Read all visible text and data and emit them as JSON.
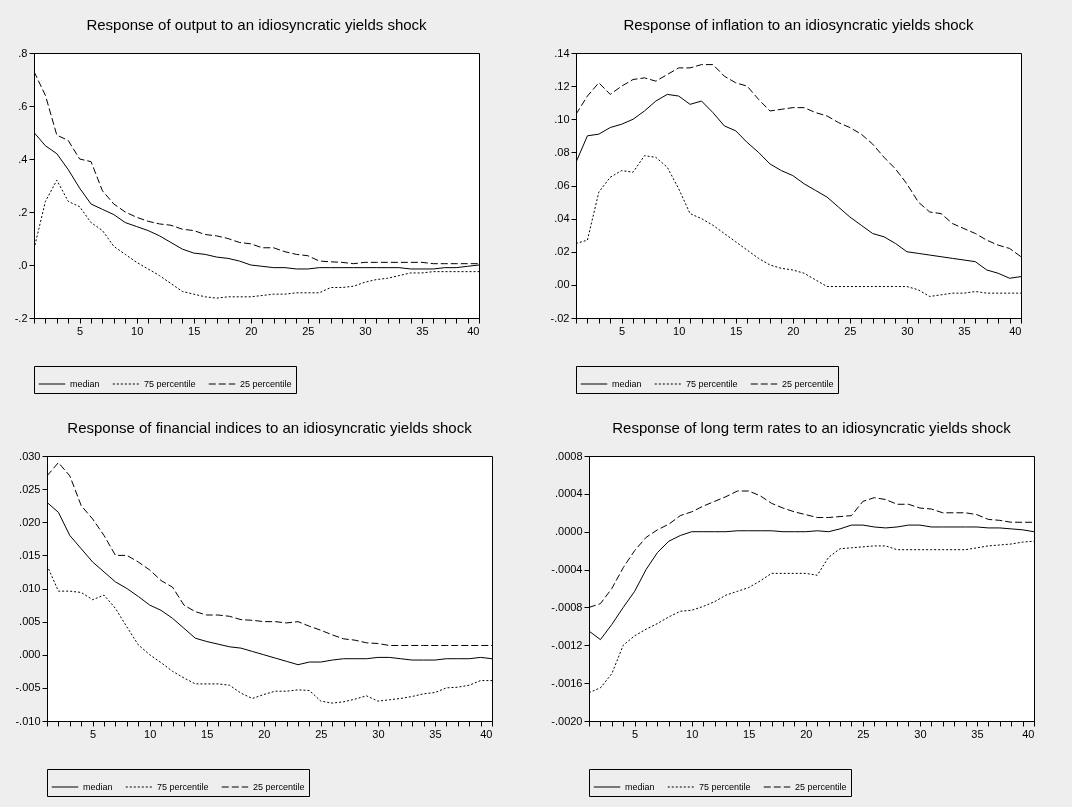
{
  "chart_data": [
    {
      "type": "line",
      "title": "Response of output to an idiosyncratic yields shock",
      "legend": "bottom",
      "x": [
        1,
        2,
        3,
        4,
        5,
        6,
        7,
        8,
        9,
        10,
        11,
        12,
        13,
        14,
        15,
        16,
        17,
        18,
        19,
        20,
        21,
        22,
        23,
        24,
        25,
        26,
        27,
        28,
        29,
        30,
        31,
        32,
        33,
        34,
        35,
        36,
        37,
        38,
        39,
        40
      ],
      "xlim": [
        1,
        40
      ],
      "xticks": [
        {
          "value": 1,
          "label": null
        },
        {
          "value": 2,
          "label": null
        },
        {
          "value": 3,
          "label": null
        },
        {
          "value": 4,
          "label": null
        },
        5,
        {
          "value": 6,
          "label": null
        },
        {
          "value": 7,
          "label": null
        },
        {
          "value": 8,
          "label": null
        },
        {
          "value": 9,
          "label": null
        },
        10,
        {
          "value": 11,
          "label": null
        },
        {
          "value": 12,
          "label": null
        },
        {
          "value": 13,
          "label": null
        },
        {
          "value": 14,
          "label": null
        },
        15,
        {
          "value": 16,
          "label": null
        },
        {
          "value": 17,
          "label": null
        },
        {
          "value": 18,
          "label": null
        },
        {
          "value": 19,
          "label": null
        },
        20,
        {
          "value": 21,
          "label": null
        },
        {
          "value": 22,
          "label": null
        },
        {
          "value": 23,
          "label": null
        },
        {
          "value": 24,
          "label": null
        },
        25,
        {
          "value": 26,
          "label": null
        },
        {
          "value": 27,
          "label": null
        },
        {
          "value": 28,
          "label": null
        },
        {
          "value": 29,
          "label": null
        },
        30,
        {
          "value": 31,
          "label": null
        },
        {
          "value": 32,
          "label": null
        },
        {
          "value": 33,
          "label": null
        },
        {
          "value": 34,
          "label": null
        },
        35,
        {
          "value": 36,
          "label": null
        },
        {
          "value": 37,
          "label": null
        },
        {
          "value": 38,
          "label": null
        },
        {
          "value": 39,
          "label": null
        },
        40
      ],
      "ylim": [
        -0.2,
        0.8
      ],
      "yticks": [
        {
          "value": -0.2,
          "label": "-.2"
        },
        {
          "value": 0,
          "label": ".0"
        },
        {
          "value": 0.2,
          "label": ".2"
        },
        {
          "value": 0.4,
          "label": ".4"
        },
        {
          "value": 0.6,
          "label": ".6"
        },
        {
          "value": 0.8,
          "label": ".8"
        }
      ],
      "series": [
        {
          "name": "median",
          "color": "#000000",
          "line_style": "solid",
          "values": [
            0.5,
            0.45,
            0.42,
            0.36,
            0.29,
            0.23,
            0.21,
            0.19,
            0.16,
            0.145,
            0.13,
            0.11,
            0.085,
            0.06,
            0.045,
            0.04,
            0.03,
            0.025,
            0.015,
            0,
            -0.005,
            -0.01,
            -0.01,
            -0.015,
            -0.015,
            -0.01,
            -0.01,
            -0.01,
            -0.01,
            -0.01,
            -0.01,
            -0.01,
            -0.01,
            -0.015,
            -0.015,
            -0.015,
            -0.01,
            -0.01,
            -0.005,
            0
          ]
        },
        {
          "name": "75 percentile",
          "color": "#000000",
          "line_style": "dotted",
          "values": [
            0.06,
            0.24,
            0.32,
            0.24,
            0.22,
            0.16,
            0.13,
            0.07,
            0.04,
            0.01,
            -0.015,
            -0.04,
            -0.07,
            -0.1,
            -0.11,
            -0.12,
            -0.125,
            -0.12,
            -0.12,
            -0.12,
            -0.115,
            -0.11,
            -0.11,
            -0.105,
            -0.105,
            -0.105,
            -0.085,
            -0.085,
            -0.08,
            -0.065,
            -0.055,
            -0.05,
            -0.04,
            -0.03,
            -0.03,
            -0.025,
            -0.025,
            -0.025,
            -0.025,
            -0.025
          ]
        },
        {
          "name": "25 percentile",
          "color": "#000000",
          "line_style": "dashed",
          "values": [
            0.73,
            0.64,
            0.49,
            0.47,
            0.4,
            0.39,
            0.28,
            0.23,
            0.2,
            0.18,
            0.165,
            0.155,
            0.15,
            0.135,
            0.13,
            0.115,
            0.11,
            0.1,
            0.085,
            0.08,
            0.065,
            0.065,
            0.05,
            0.04,
            0.035,
            0.015,
            0.012,
            0.01,
            0.005,
            0.01,
            0.01,
            0.01,
            0.01,
            0.01,
            0.01,
            0.005,
            0.005,
            0.005,
            0.005,
            0.005
          ]
        }
      ]
    },
    {
      "type": "line",
      "title": "Response of inflation to an idiosyncratic yields shock",
      "legend": "bottom",
      "x": [
        1,
        2,
        3,
        4,
        5,
        6,
        7,
        8,
        9,
        10,
        11,
        12,
        13,
        14,
        15,
        16,
        17,
        18,
        19,
        20,
        21,
        22,
        23,
        24,
        25,
        26,
        27,
        28,
        29,
        30,
        31,
        32,
        33,
        34,
        35,
        36,
        37,
        38,
        39,
        40
      ],
      "xlim": [
        1,
        40
      ],
      "xticks": [
        {
          "value": 1,
          "label": null
        },
        {
          "value": 2,
          "label": null
        },
        {
          "value": 3,
          "label": null
        },
        {
          "value": 4,
          "label": null
        },
        5,
        {
          "value": 6,
          "label": null
        },
        {
          "value": 7,
          "label": null
        },
        {
          "value": 8,
          "label": null
        },
        {
          "value": 9,
          "label": null
        },
        10,
        {
          "value": 11,
          "label": null
        },
        {
          "value": 12,
          "label": null
        },
        {
          "value": 13,
          "label": null
        },
        {
          "value": 14,
          "label": null
        },
        15,
        {
          "value": 16,
          "label": null
        },
        {
          "value": 17,
          "label": null
        },
        {
          "value": 18,
          "label": null
        },
        {
          "value": 19,
          "label": null
        },
        20,
        {
          "value": 21,
          "label": null
        },
        {
          "value": 22,
          "label": null
        },
        {
          "value": 23,
          "label": null
        },
        {
          "value": 24,
          "label": null
        },
        25,
        {
          "value": 26,
          "label": null
        },
        {
          "value": 27,
          "label": null
        },
        {
          "value": 28,
          "label": null
        },
        {
          "value": 29,
          "label": null
        },
        30,
        {
          "value": 31,
          "label": null
        },
        {
          "value": 32,
          "label": null
        },
        {
          "value": 33,
          "label": null
        },
        {
          "value": 34,
          "label": null
        },
        35,
        {
          "value": 36,
          "label": null
        },
        {
          "value": 37,
          "label": null
        },
        {
          "value": 38,
          "label": null
        },
        {
          "value": 39,
          "label": null
        },
        40
      ],
      "ylim": [
        -0.02,
        0.14
      ],
      "yticks": [
        {
          "value": -0.02,
          "label": "-.02"
        },
        {
          "value": 0,
          "label": ".00"
        },
        {
          "value": 0.02,
          "label": ".02"
        },
        {
          "value": 0.04,
          "label": ".04"
        },
        {
          "value": 0.06,
          "label": ".06"
        },
        {
          "value": 0.08,
          "label": ".08"
        },
        {
          "value": 0.1,
          "label": ".10"
        },
        {
          "value": 0.12,
          "label": ".12"
        },
        {
          "value": 0.14,
          "label": ".14"
        }
      ],
      "series": [
        {
          "name": "median",
          "color": "#000000",
          "line_style": "solid",
          "values": [
            0.074,
            0.09,
            0.091,
            0.095,
            0.097,
            0.1,
            0.105,
            0.111,
            0.115,
            0.114,
            0.109,
            0.111,
            0.104,
            0.096,
            0.093,
            0.086,
            0.08,
            0.073,
            0.069,
            0.066,
            0.061,
            0.057,
            0.053,
            0.047,
            0.041,
            0.036,
            0.031,
            0.029,
            0.025,
            0.02,
            0.019,
            0.018,
            0.017,
            0.016,
            0.015,
            0.014,
            0.009,
            0.007,
            0.004,
            0.005
          ]
        },
        {
          "name": "75 percentile",
          "color": "#000000",
          "line_style": "dotted",
          "values": [
            0.025,
            0.027,
            0.056,
            0.065,
            0.069,
            0.068,
            0.078,
            0.077,
            0.071,
            0.058,
            0.043,
            0.04,
            0.036,
            0.031,
            0.026,
            0.021,
            0.016,
            0.012,
            0.01,
            0.009,
            0.007,
            0.003,
            -0.001,
            -0.001,
            -0.001,
            -0.001,
            -0.001,
            -0.001,
            -0.001,
            -0.001,
            -0.003,
            -0.007,
            -0.006,
            -0.005,
            -0.005,
            -0.004,
            -0.005,
            -0.005,
            -0.005,
            -0.005
          ]
        },
        {
          "name": "25 percentile",
          "color": "#000000",
          "line_style": "dashed",
          "values": [
            0.103,
            0.114,
            0.122,
            0.115,
            0.12,
            0.124,
            0.125,
            0.123,
            0.127,
            0.131,
            0.131,
            0.133,
            0.133,
            0.126,
            0.122,
            0.12,
            0.112,
            0.105,
            0.106,
            0.107,
            0.107,
            0.104,
            0.102,
            0.098,
            0.095,
            0.091,
            0.085,
            0.077,
            0.07,
            0.061,
            0.05,
            0.044,
            0.043,
            0.037,
            0.034,
            0.031,
            0.027,
            0.024,
            0.022,
            0.017
          ]
        }
      ]
    },
    {
      "type": "line",
      "title": "Response of financial indices to an idiosyncratic yields shock",
      "legend": "bottom",
      "x": [
        1,
        2,
        3,
        4,
        5,
        6,
        7,
        8,
        9,
        10,
        11,
        12,
        13,
        14,
        15,
        16,
        17,
        18,
        19,
        20,
        21,
        22,
        23,
        24,
        25,
        26,
        27,
        28,
        29,
        30,
        31,
        32,
        33,
        34,
        35,
        36,
        37,
        38,
        39,
        40
      ],
      "xlim": [
        1,
        40
      ],
      "xticks": [
        {
          "value": 1,
          "label": null
        },
        {
          "value": 2,
          "label": null
        },
        {
          "value": 3,
          "label": null
        },
        {
          "value": 4,
          "label": null
        },
        5,
        {
          "value": 6,
          "label": null
        },
        {
          "value": 7,
          "label": null
        },
        {
          "value": 8,
          "label": null
        },
        {
          "value": 9,
          "label": null
        },
        10,
        {
          "value": 11,
          "label": null
        },
        {
          "value": 12,
          "label": null
        },
        {
          "value": 13,
          "label": null
        },
        {
          "value": 14,
          "label": null
        },
        15,
        {
          "value": 16,
          "label": null
        },
        {
          "value": 17,
          "label": null
        },
        {
          "value": 18,
          "label": null
        },
        {
          "value": 19,
          "label": null
        },
        20,
        {
          "value": 21,
          "label": null
        },
        {
          "value": 22,
          "label": null
        },
        {
          "value": 23,
          "label": null
        },
        {
          "value": 24,
          "label": null
        },
        25,
        {
          "value": 26,
          "label": null
        },
        {
          "value": 27,
          "label": null
        },
        {
          "value": 28,
          "label": null
        },
        {
          "value": 29,
          "label": null
        },
        30,
        {
          "value": 31,
          "label": null
        },
        {
          "value": 32,
          "label": null
        },
        {
          "value": 33,
          "label": null
        },
        {
          "value": 34,
          "label": null
        },
        35,
        {
          "value": 36,
          "label": null
        },
        {
          "value": 37,
          "label": null
        },
        {
          "value": 38,
          "label": null
        },
        {
          "value": 39,
          "label": null
        },
        40
      ],
      "ylim": [
        -0.01,
        0.03
      ],
      "yticks": [
        {
          "value": -0.01,
          "label": "-.010"
        },
        {
          "value": -0.005,
          "label": "-.005"
        },
        {
          "value": 0,
          "label": ".000"
        },
        {
          "value": 0.005,
          "label": ".005"
        },
        {
          "value": 0.01,
          "label": ".010"
        },
        {
          "value": 0.015,
          "label": ".015"
        },
        {
          "value": 0.02,
          "label": ".020"
        },
        {
          "value": 0.025,
          "label": ".025"
        },
        {
          "value": 0.03,
          "label": ".030"
        }
      ],
      "series": [
        {
          "name": "median",
          "color": "#000000",
          "line_style": "solid",
          "values": [
            0.023,
            0.0215,
            0.018,
            0.016,
            0.014,
            0.0125,
            0.011,
            0.01,
            0.0088,
            0.0075,
            0.0067,
            0.0055,
            0.004,
            0.0025,
            0.002,
            0.0016,
            0.0012,
            0.001,
            0.0005,
            0,
            -0.0005,
            -0.001,
            -0.0015,
            -0.0011,
            -0.0011,
            -0.0008,
            -0.0006,
            -0.0006,
            -0.0006,
            -0.0004,
            -0.0004,
            -0.0006,
            -0.0008,
            -0.0008,
            -0.0008,
            -0.0006,
            -0.0006,
            -0.0006,
            -0.0004,
            -0.0006
          ]
        },
        {
          "name": "75 percentile",
          "color": "#000000",
          "line_style": "dotted",
          "values": [
            0.0135,
            0.0096,
            0.0096,
            0.0094,
            0.0083,
            0.009,
            0.007,
            0.0042,
            0.0015,
            0,
            -0.0012,
            -0.0025,
            -0.0035,
            -0.0044,
            -0.0044,
            -0.0044,
            -0.0046,
            -0.0058,
            -0.0066,
            -0.006,
            -0.0055,
            -0.0055,
            -0.0053,
            -0.0054,
            -0.007,
            -0.0073,
            -0.0071,
            -0.0067,
            -0.0062,
            -0.007,
            -0.0068,
            -0.0066,
            -0.0063,
            -0.0059,
            -0.0057,
            -0.005,
            -0.0049,
            -0.0046,
            -0.0039,
            -0.0039
          ]
        },
        {
          "name": "25 percentile",
          "color": "#000000",
          "line_style": "dashed",
          "values": [
            0.027,
            0.029,
            0.027,
            0.0225,
            0.0205,
            0.018,
            0.015,
            0.015,
            0.014,
            0.0128,
            0.0112,
            0.0102,
            0.0075,
            0.0065,
            0.006,
            0.006,
            0.0058,
            0.0053,
            0.0052,
            0.005,
            0.005,
            0.0048,
            0.005,
            0.0043,
            0.0037,
            0.003,
            0.0024,
            0.0022,
            0.0018,
            0.0017,
            0.0014,
            0.0014,
            0.0014,
            0.0014,
            0.0014,
            0.0014,
            0.0014,
            0.0014,
            0.0014,
            0.0014
          ]
        }
      ]
    },
    {
      "type": "line",
      "title": "Response of long term rates to an idiosyncratic yields shock",
      "legend": "bottom",
      "x": [
        1,
        2,
        3,
        4,
        5,
        6,
        7,
        8,
        9,
        10,
        11,
        12,
        13,
        14,
        15,
        16,
        17,
        18,
        19,
        20,
        21,
        22,
        23,
        24,
        25,
        26,
        27,
        28,
        29,
        30,
        31,
        32,
        33,
        34,
        35,
        36,
        37,
        38,
        39,
        40
      ],
      "xlim": [
        1,
        40
      ],
      "xticks": [
        {
          "value": 1,
          "label": null
        },
        {
          "value": 2,
          "label": null
        },
        {
          "value": 3,
          "label": null
        },
        {
          "value": 4,
          "label": null
        },
        5,
        {
          "value": 6,
          "label": null
        },
        {
          "value": 7,
          "label": null
        },
        {
          "value": 8,
          "label": null
        },
        {
          "value": 9,
          "label": null
        },
        10,
        {
          "value": 11,
          "label": null
        },
        {
          "value": 12,
          "label": null
        },
        {
          "value": 13,
          "label": null
        },
        {
          "value": 14,
          "label": null
        },
        15,
        {
          "value": 16,
          "label": null
        },
        {
          "value": 17,
          "label": null
        },
        {
          "value": 18,
          "label": null
        },
        {
          "value": 19,
          "label": null
        },
        20,
        {
          "value": 21,
          "label": null
        },
        {
          "value": 22,
          "label": null
        },
        {
          "value": 23,
          "label": null
        },
        {
          "value": 24,
          "label": null
        },
        25,
        {
          "value": 26,
          "label": null
        },
        {
          "value": 27,
          "label": null
        },
        {
          "value": 28,
          "label": null
        },
        {
          "value": 29,
          "label": null
        },
        30,
        {
          "value": 31,
          "label": null
        },
        {
          "value": 32,
          "label": null
        },
        {
          "value": 33,
          "label": null
        },
        {
          "value": 34,
          "label": null
        },
        35,
        {
          "value": 36,
          "label": null
        },
        {
          "value": 37,
          "label": null
        },
        {
          "value": 38,
          "label": null
        },
        {
          "value": 39,
          "label": null
        },
        40
      ],
      "ylim": [
        -0.002,
        0.0008
      ],
      "yticks": [
        {
          "value": -0.002,
          "label": "-.0020"
        },
        {
          "value": -0.0016,
          "label": "-.0016"
        },
        {
          "value": -0.0012,
          "label": "-.0012"
        },
        {
          "value": -0.0008,
          "label": "-.0008"
        },
        {
          "value": -0.0004,
          "label": "-.0004"
        },
        {
          "value": 0,
          "label": ".0000"
        },
        {
          "value": 0.0004,
          "label": ".0004"
        },
        {
          "value": 0.0008,
          "label": ".0008"
        }
      ],
      "series": [
        {
          "name": "median",
          "color": "#000000",
          "line_style": "solid",
          "values": [
            -0.00105,
            -0.00114,
            -0.00098,
            -0.0008,
            -0.00063,
            -0.0004,
            -0.00022,
            -0.0001,
            -4e-05,
            0,
            0,
            0,
            0,
            1e-05,
            1e-05,
            1e-05,
            1e-05,
            0,
            0,
            0,
            1e-05,
            0,
            3e-05,
            7e-05,
            7e-05,
            5e-05,
            4e-05,
            5e-05,
            7e-05,
            7e-05,
            5e-05,
            5e-05,
            5e-05,
            5e-05,
            5e-05,
            4e-05,
            4e-05,
            3e-05,
            2e-05,
            0
          ]
        },
        {
          "name": "75 percentile",
          "color": "#000000",
          "line_style": "dotted",
          "values": [
            -0.0017,
            -0.00165,
            -0.0015,
            -0.0012,
            -0.0011,
            -0.00103,
            -0.00097,
            -0.0009,
            -0.00084,
            -0.00083,
            -0.00079,
            -0.00074,
            -0.00067,
            -0.00063,
            -0.00059,
            -0.00052,
            -0.00044,
            -0.00044,
            -0.00044,
            -0.00044,
            -0.00046,
            -0.00027,
            -0.00018,
            -0.00017,
            -0.00016,
            -0.00015,
            -0.00015,
            -0.00019,
            -0.00019,
            -0.00019,
            -0.00019,
            -0.00019,
            -0.00019,
            -0.00019,
            -0.00017,
            -0.00015,
            -0.00014,
            -0.00013,
            -0.00011,
            -0.0001
          ]
        },
        {
          "name": "25 percentile",
          "color": "#000000",
          "line_style": "dashed",
          "values": [
            -0.0008,
            -0.00076,
            -0.0006,
            -0.00038,
            -0.0002,
            -6e-05,
            2e-05,
            8e-05,
            0.00017,
            0.00021,
            0.00027,
            0.00032,
            0.00037,
            0.00043,
            0.00043,
            0.00038,
            0.0003,
            0.00025,
            0.00021,
            0.00018,
            0.00015,
            0.00015,
            0.00016,
            0.00017,
            0.00032,
            0.00036,
            0.00034,
            0.00029,
            0.00029,
            0.00025,
            0.00024,
            0.0002,
            0.0002,
            0.0002,
            0.00018,
            0.00013,
            0.00012,
            0.0001,
            0.0001,
            0.0001
          ]
        }
      ]
    }
  ]
}
